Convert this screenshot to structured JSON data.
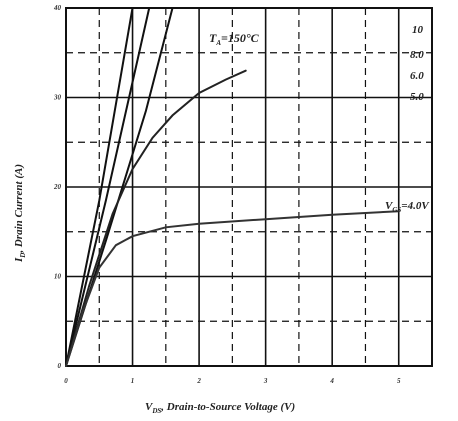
{
  "chart_data": {
    "type": "line",
    "annotation": "T",
    "annotation_sub": "A",
    "annotation_suffix": "=150°C",
    "xlabel": "V",
    "xlabel_sub": "DS",
    "xlabel_suffix": ", Drain-to-Source Voltage (V)",
    "ylabel": "I",
    "ylabel_sub": "D",
    "ylabel_suffix": ", Drain Current (A)",
    "xlim": [
      0,
      5.5
    ],
    "ylim": [
      0,
      40
    ],
    "x_ticks": [
      "0",
      "1",
      "2",
      "3",
      "4",
      "5"
    ],
    "y_ticks": [
      "0",
      "10",
      "20",
      "30",
      "40"
    ],
    "grid": true,
    "series": [
      {
        "name": "10",
        "color": "#111111",
        "x": [
          0,
          0.5,
          1.0
        ],
        "y": [
          0,
          18.5,
          40
        ]
      },
      {
        "name": "8.0",
        "color": "#111111",
        "x": [
          0,
          0.6,
          1.25
        ],
        "y": [
          0,
          18.5,
          40
        ]
      },
      {
        "name": "6.0",
        "color": "#111111",
        "x": [
          0,
          0.6,
          1.2,
          1.6
        ],
        "y": [
          0,
          14,
          28.5,
          40
        ]
      },
      {
        "name": "5.0",
        "color": "#222222",
        "x": [
          0,
          0.35,
          0.7,
          1.0,
          1.3,
          1.6,
          2.0,
          2.4,
          2.7
        ],
        "y": [
          0,
          9,
          17,
          22,
          25.5,
          28,
          30.5,
          32,
          33
        ]
      },
      {
        "name": "4.0V",
        "color": "#333333",
        "x": [
          0,
          0.25,
          0.5,
          0.75,
          1.0,
          1.5,
          2.0,
          3.0,
          4.0,
          5.0
        ],
        "y": [
          0,
          6,
          11,
          13.5,
          14.5,
          15.5,
          15.9,
          16.4,
          16.9,
          17.3
        ]
      }
    ],
    "series_label_prefix": "V",
    "series_label_sub": "GS",
    "series_label_suffix": "=4.0V"
  }
}
